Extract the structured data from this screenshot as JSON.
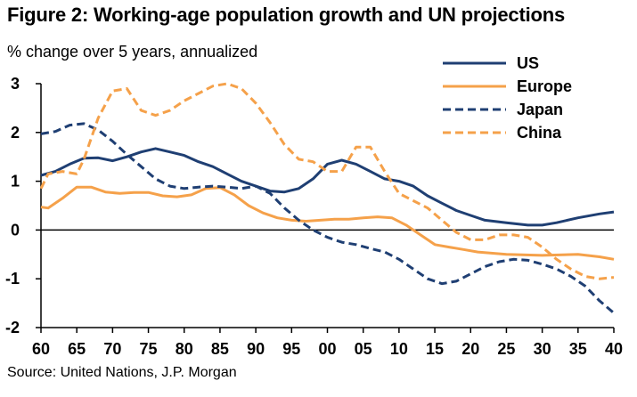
{
  "chart_data": {
    "type": "line",
    "title": "Figure 2: Working-age population growth and UN projections",
    "subtitle": "% change over 5 years, annualized",
    "source": "Source: United Nations, J.P. Morgan",
    "xlabel": "",
    "ylabel": "",
    "xlim": [
      1960,
      2040
    ],
    "ylim": [
      -2,
      3
    ],
    "x_tick_labels": [
      "60",
      "65",
      "70",
      "75",
      "80",
      "85",
      "90",
      "95",
      "00",
      "05",
      "10",
      "15",
      "20",
      "25",
      "30",
      "35",
      "40"
    ],
    "y_ticks": [
      3,
      2,
      1,
      0,
      -1,
      -2
    ],
    "y_tick_labels": [
      "3",
      "2",
      "1",
      "0",
      "-1",
      "-2"
    ],
    "legend_position": "top-right",
    "series": [
      {
        "name": "US",
        "color": "#1f3f73",
        "dash": "solid",
        "x": [
          1960,
          1962,
          1964,
          1966,
          1968,
          1970,
          1972,
          1974,
          1976,
          1978,
          1980,
          1982,
          1984,
          1986,
          1988,
          1990,
          1992,
          1994,
          1996,
          1998,
          2000,
          2002,
          2004,
          2006,
          2008,
          2010,
          2012,
          2014,
          2016,
          2018,
          2020,
          2022,
          2025,
          2028,
          2030,
          2032,
          2035,
          2038,
          2040
        ],
        "y": [
          1.12,
          1.2,
          1.35,
          1.47,
          1.48,
          1.42,
          1.5,
          1.6,
          1.67,
          1.6,
          1.53,
          1.4,
          1.3,
          1.15,
          1.0,
          0.9,
          0.8,
          0.78,
          0.85,
          1.05,
          1.35,
          1.43,
          1.35,
          1.2,
          1.05,
          1.0,
          0.9,
          0.7,
          0.55,
          0.4,
          0.3,
          0.2,
          0.15,
          0.1,
          0.1,
          0.15,
          0.25,
          0.33,
          0.37
        ]
      },
      {
        "name": "Europe",
        "color": "#f5a14a",
        "dash": "solid",
        "x": [
          1960,
          1961,
          1963,
          1965,
          1967,
          1969,
          1971,
          1973,
          1975,
          1977,
          1979,
          1981,
          1983,
          1985,
          1987,
          1989,
          1991,
          1993,
          1995,
          1997,
          1999,
          2001,
          2003,
          2005,
          2007,
          2009,
          2011,
          2013,
          2015,
          2017,
          2019,
          2021,
          2025,
          2030,
          2035,
          2038,
          2040
        ],
        "y": [
          0.47,
          0.45,
          0.65,
          0.88,
          0.88,
          0.78,
          0.75,
          0.77,
          0.77,
          0.7,
          0.68,
          0.72,
          0.85,
          0.87,
          0.72,
          0.5,
          0.35,
          0.25,
          0.2,
          0.18,
          0.2,
          0.22,
          0.22,
          0.25,
          0.27,
          0.25,
          0.1,
          -0.1,
          -0.3,
          -0.35,
          -0.4,
          -0.45,
          -0.5,
          -0.52,
          -0.5,
          -0.55,
          -0.6
        ]
      },
      {
        "name": "Japan",
        "color": "#1f3f73",
        "dash": "dashed",
        "x": [
          1960,
          1962,
          1964,
          1966,
          1968,
          1970,
          1972,
          1974,
          1976,
          1978,
          1980,
          1982,
          1984,
          1986,
          1988,
          1990,
          1992,
          1994,
          1996,
          1998,
          2000,
          2002,
          2004,
          2006,
          2008,
          2010,
          2012,
          2014,
          2016,
          2018,
          2020,
          2022,
          2024,
          2026,
          2028,
          2030,
          2032,
          2034,
          2036,
          2038,
          2040
        ],
        "y": [
          1.97,
          2.02,
          2.15,
          2.18,
          2.05,
          1.82,
          1.55,
          1.3,
          1.05,
          0.9,
          0.85,
          0.88,
          0.9,
          0.88,
          0.85,
          0.9,
          0.75,
          0.45,
          0.2,
          0.0,
          -0.15,
          -0.25,
          -0.3,
          -0.38,
          -0.45,
          -0.6,
          -0.8,
          -1.0,
          -1.1,
          -1.05,
          -0.9,
          -0.75,
          -0.65,
          -0.6,
          -0.62,
          -0.7,
          -0.8,
          -0.95,
          -1.15,
          -1.45,
          -1.7
        ]
      },
      {
        "name": "China",
        "color": "#f5a14a",
        "dash": "dashed",
        "x": [
          1960,
          1961,
          1963,
          1965,
          1966,
          1968,
          1970,
          1972,
          1974,
          1976,
          1978,
          1980,
          1982,
          1984,
          1986,
          1988,
          1990,
          1992,
          1994,
          1996,
          1998,
          2000,
          2002,
          2004,
          2006,
          2008,
          2010,
          2012,
          2014,
          2016,
          2018,
          2020,
          2022,
          2024,
          2026,
          2028,
          2030,
          2032,
          2034,
          2036,
          2038,
          2040
        ],
        "y": [
          0.85,
          1.15,
          1.2,
          1.15,
          1.45,
          2.3,
          2.85,
          2.9,
          2.45,
          2.35,
          2.45,
          2.65,
          2.8,
          2.95,
          3.0,
          2.9,
          2.6,
          2.2,
          1.75,
          1.45,
          1.4,
          1.2,
          1.2,
          1.7,
          1.7,
          1.2,
          0.75,
          0.6,
          0.45,
          0.2,
          -0.05,
          -0.2,
          -0.2,
          -0.1,
          -0.1,
          -0.15,
          -0.35,
          -0.6,
          -0.8,
          -0.95,
          -1.0,
          -0.97
        ]
      }
    ]
  }
}
